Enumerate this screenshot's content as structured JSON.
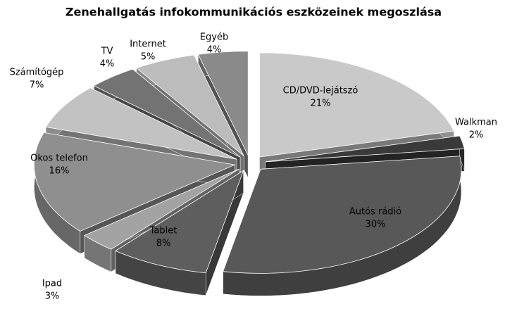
{
  "chart_data": {
    "type": "pie3d",
    "title": "Zenehallgatás infokommunikációs eszközeinek megoszlása",
    "categories": [
      "CD/DVD-lejátszó",
      "Walkman",
      "Autós rádió",
      "Tablet",
      "Ipad",
      "Okos telefon",
      "Számítógép",
      "TV",
      "Internet",
      "Egyéb"
    ],
    "values": [
      21,
      2,
      30,
      8,
      3,
      16,
      7,
      4,
      5,
      4
    ],
    "value_labels": [
      "21%",
      "2%",
      "30%",
      "8%",
      "3%",
      "16%",
      "7%",
      "4%",
      "5%",
      "4%"
    ],
    "colors": [
      "#c9c9c9",
      "#3a3a3a",
      "#585858",
      "#5e5e5e",
      "#a3a3a3",
      "#8f8f8f",
      "#c2c2c2",
      "#737373",
      "#bcbcbc",
      "#8a8a8a"
    ]
  }
}
